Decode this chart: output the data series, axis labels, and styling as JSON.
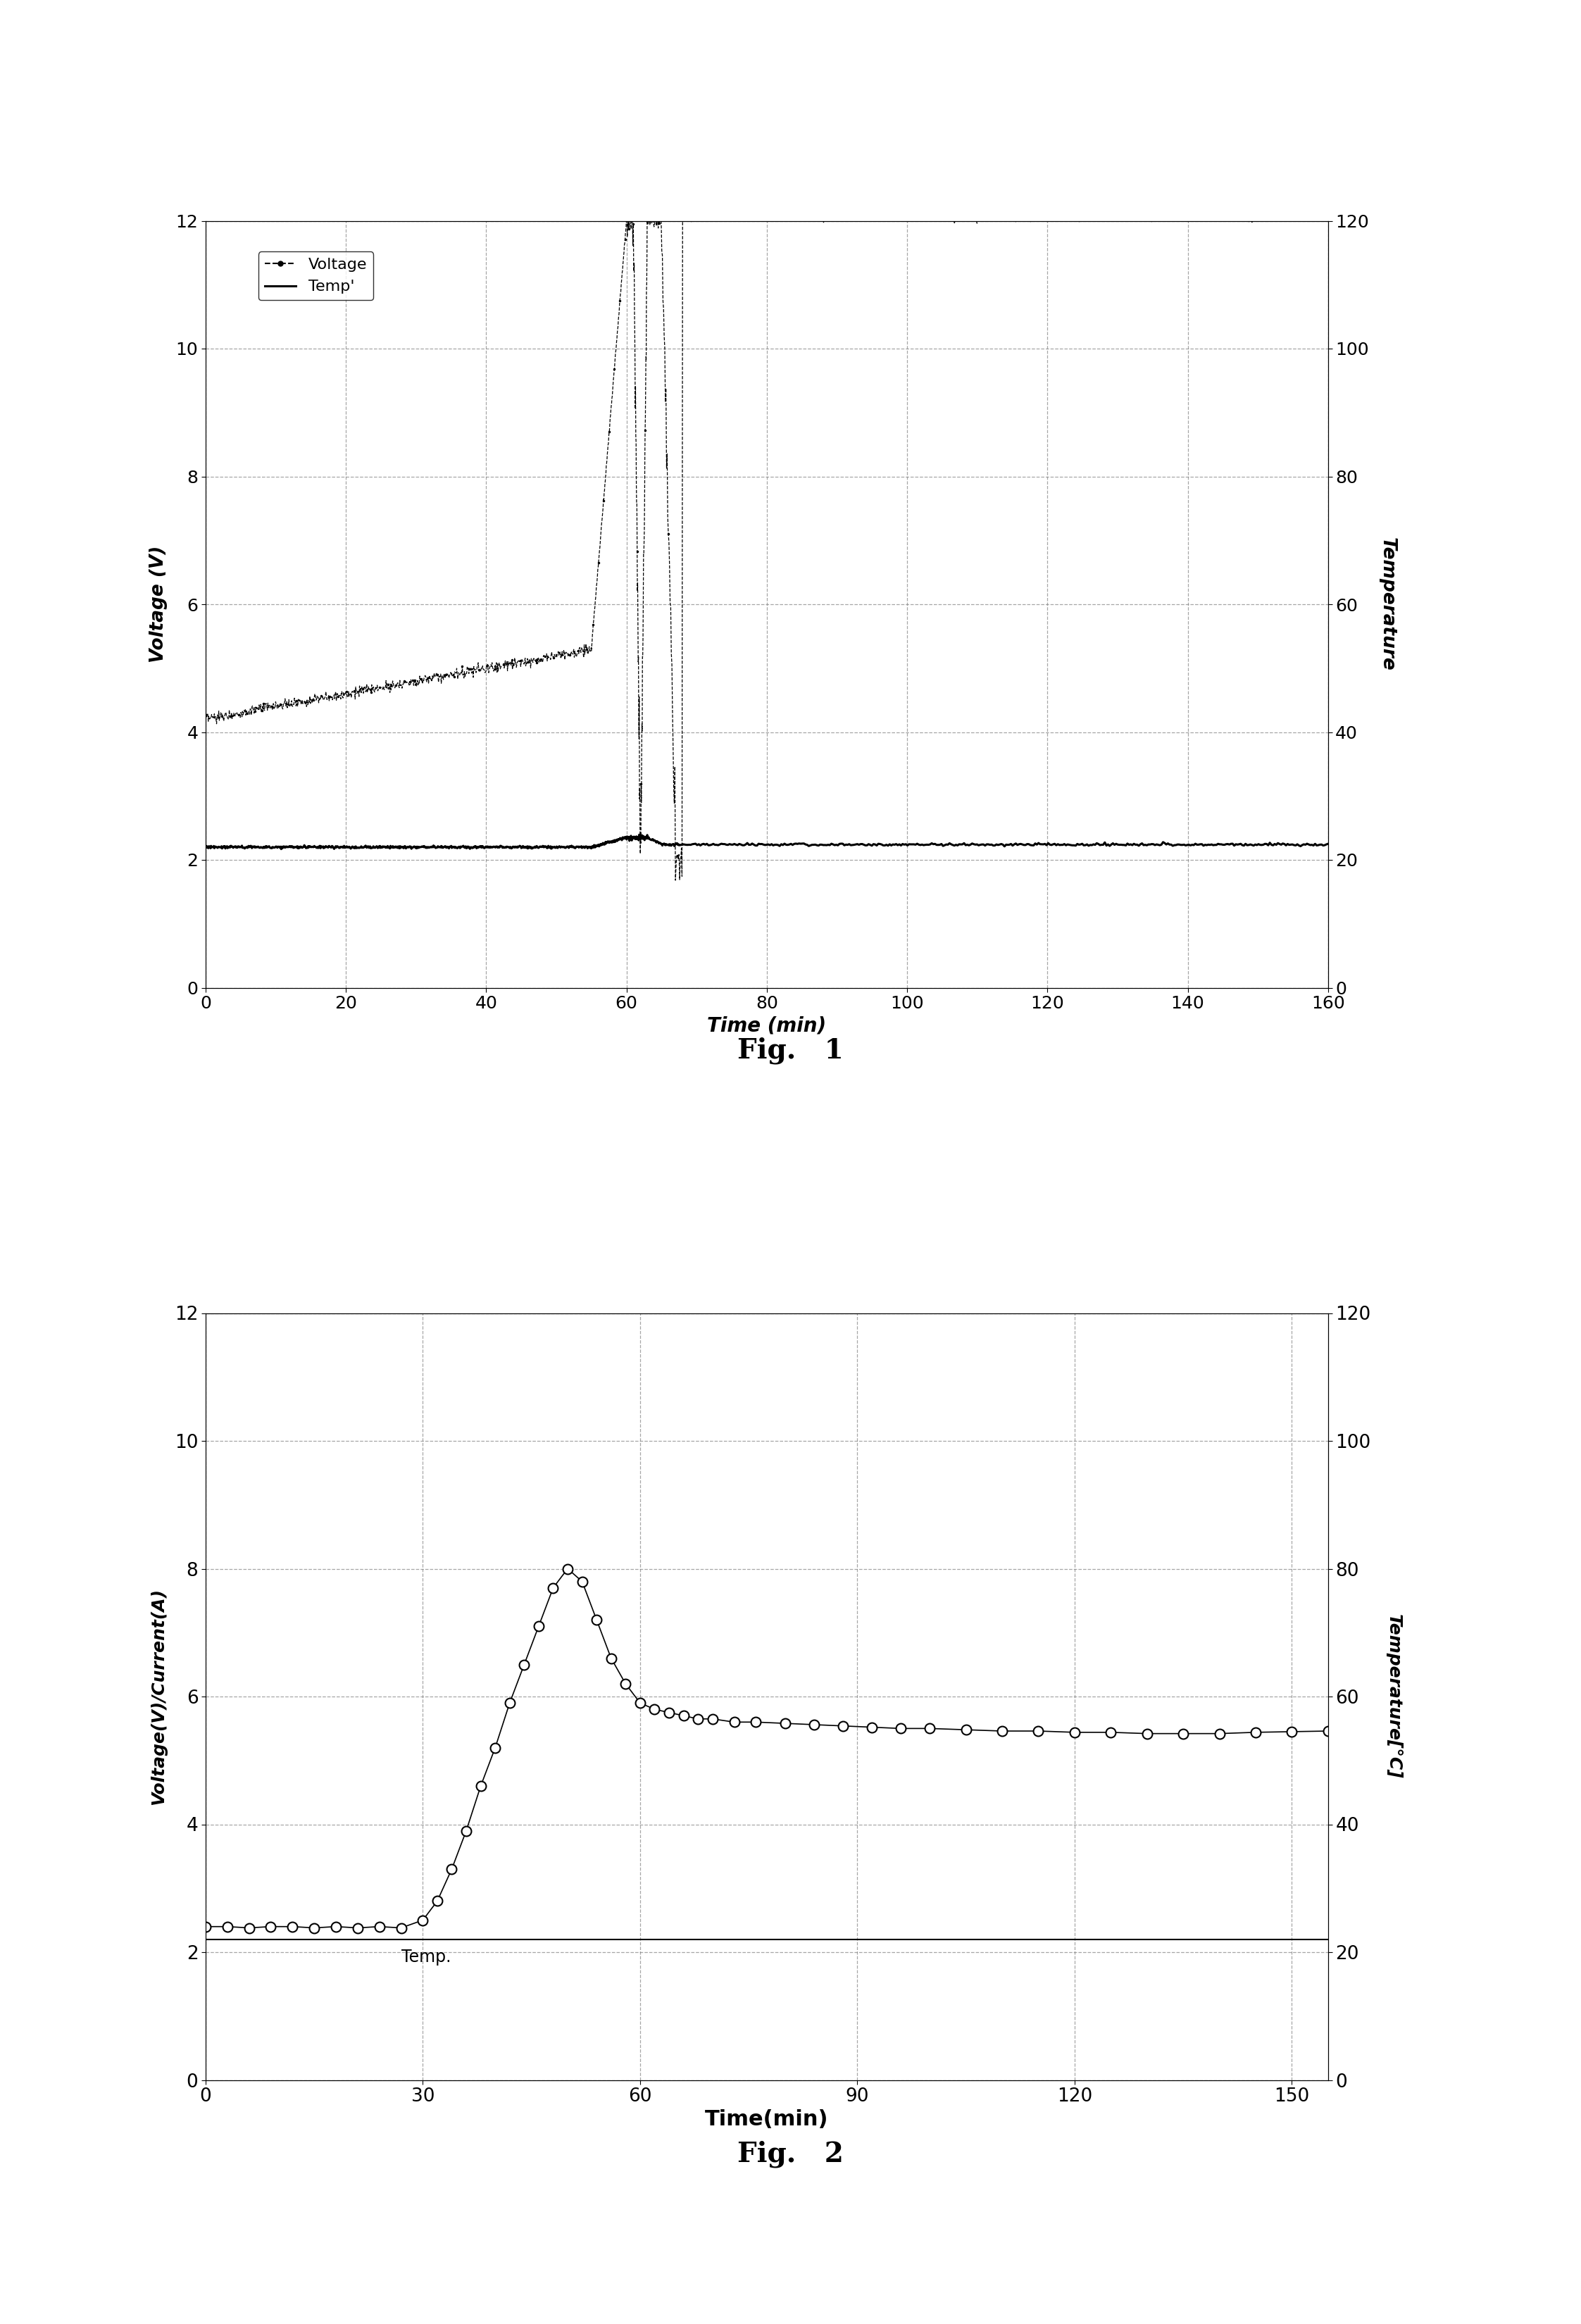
{
  "fig1": {
    "title": "Fig.   1",
    "xlabel": "Time (min)",
    "ylabel_left": "Voltage (V)",
    "ylabel_right": "Temperature",
    "xlim": [
      0,
      160
    ],
    "ylim_left": [
      0,
      12
    ],
    "ylim_right": [
      0,
      120
    ],
    "xticks": [
      0,
      20,
      40,
      60,
      80,
      100,
      120,
      140,
      160
    ],
    "yticks_left": [
      0,
      2,
      4,
      6,
      8,
      10,
      12
    ],
    "yticks_right": [
      0,
      20,
      40,
      60,
      80,
      100,
      120
    ],
    "legend_labels": [
      "Voltage",
      "Temp'"
    ]
  },
  "fig2": {
    "title": "Fig.   2",
    "xlabel": "Time(min)",
    "ylabel_left": "Voltage(V)/Current(A)",
    "ylabel_right": "Temperature[°C]",
    "xlim": [
      0,
      155
    ],
    "ylim_left": [
      0,
      12
    ],
    "ylim_right": [
      0,
      120
    ],
    "xticks": [
      0,
      30,
      60,
      90,
      120,
      150
    ],
    "yticks_left": [
      0,
      2,
      4,
      6,
      8,
      10,
      12
    ],
    "yticks_right": [
      0,
      20,
      40,
      60,
      80,
      100,
      120
    ],
    "annotation": "Temp."
  }
}
